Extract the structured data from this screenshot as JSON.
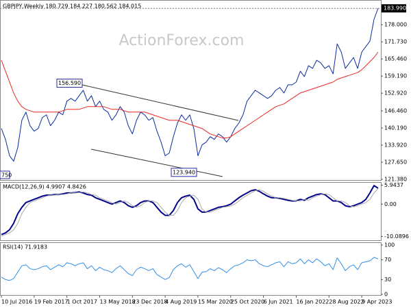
{
  "chart_data": [
    {
      "type": "line",
      "title": "GBPJPY,Weekly  180.729 184.227 180.562 184.015",
      "watermark": "ActionForex.com",
      "ylim": [
        120.88,
        186.55
      ],
      "yticks": [
        {
          "value": 178,
          "label": "178.000"
        },
        {
          "value": 171.73,
          "label": "171.730"
        },
        {
          "value": 165.46,
          "label": "165.460"
        },
        {
          "value": 159.19,
          "label": "159.190"
        },
        {
          "value": 152.92,
          "label": "152.920"
        },
        {
          "value": 146.46,
          "label": "146.460"
        },
        {
          "value": 140.19,
          "label": "140.190"
        },
        {
          "value": 133.92,
          "label": "133.920"
        },
        {
          "value": 127.65,
          "label": "127.650"
        },
        {
          "value": 121.38,
          "label": "121.380"
        }
      ],
      "current_price": {
        "value": 183.99,
        "label": "183.990"
      },
      "annotations": [
        {
          "value": 156.59,
          "label": "156.590"
        },
        {
          "value": 123.94,
          "label": "123.940"
        }
      ],
      "clipped_label": "750",
      "series": [
        {
          "color": "#0a2a9e",
          "line_width": 1,
          "values": [
            140,
            136,
            130,
            128,
            133,
            143,
            146,
            141,
            139,
            140,
            144,
            145,
            141,
            143,
            146,
            145,
            150,
            151,
            150,
            152,
            154,
            150,
            152,
            148,
            150,
            147,
            146,
            143,
            145,
            148,
            146,
            141,
            138,
            143,
            146,
            145,
            143,
            144,
            139,
            135,
            130,
            131,
            137,
            142,
            145,
            143,
            145,
            140,
            130,
            134,
            135,
            137,
            136,
            138,
            137,
            135,
            137,
            140,
            142,
            145,
            150,
            152,
            154,
            153,
            152,
            151,
            152,
            154,
            155,
            153,
            156,
            156,
            157,
            161,
            159,
            163,
            162,
            165,
            164,
            162,
            163,
            160,
            171,
            168,
            162,
            164,
            166,
            162,
            168,
            170,
            172,
            180,
            184.015
          ]
        },
        {
          "color": "#e8281f",
          "line_width": 1,
          "values": [
            165,
            161,
            157,
            153,
            150,
            148,
            147,
            146.5,
            146,
            146,
            146,
            146,
            146,
            146,
            146,
            146.5,
            147,
            147,
            147,
            147,
            147.5,
            148,
            148,
            148,
            148,
            148,
            147.5,
            147,
            147,
            147,
            146.5,
            146,
            146,
            146,
            146,
            146,
            145.5,
            145,
            144.5,
            144,
            143.5,
            143,
            143,
            143,
            142.5,
            142,
            141.5,
            141,
            140.5,
            140,
            139,
            138,
            137.5,
            137,
            136.5,
            136.5,
            137,
            138,
            139,
            140,
            141,
            142,
            143,
            144,
            145,
            146,
            147,
            148,
            148.5,
            149,
            150,
            151,
            152,
            153,
            153.5,
            154,
            154.5,
            155,
            155.5,
            156,
            156.5,
            157,
            158,
            158.5,
            159,
            159.5,
            160,
            160.5,
            161.5,
            163,
            164.5,
            166,
            168
          ]
        }
      ]
    },
    {
      "type": "line",
      "title": "MACD(12,26,9) 4.9907 4.8426",
      "ylim": [
        -11.5,
        6.9
      ],
      "yticks": [
        5.9437,
        {
          "value": 0,
          "label": "0.00"
        },
        -10.0896
      ],
      "series": [
        {
          "color": "#00008b",
          "line_width": 2,
          "values": [
            -9.5,
            -9,
            -8,
            -6,
            -3,
            -1,
            0.5,
            1,
            1.5,
            2,
            2.5,
            2.8,
            2.8,
            3,
            3,
            3.2,
            3.5,
            3.5,
            3.6,
            3.8,
            3.5,
            3,
            2.8,
            2,
            1.5,
            1,
            0.5,
            0,
            0.5,
            1,
            0.5,
            -0.5,
            -1,
            -0.5,
            0.5,
            1,
            1,
            0.5,
            -1,
            -2.5,
            -3.5,
            -3.5,
            -2,
            0.5,
            2,
            2.5,
            2.8,
            1.5,
            -1.5,
            -2.5,
            -2.5,
            -2,
            -1.5,
            -1,
            -0.8,
            -0.5,
            0,
            1,
            2,
            2.8,
            3.5,
            4.2,
            4.5,
            4,
            3.2,
            2.5,
            2,
            2,
            1.8,
            1.5,
            1.2,
            1,
            1,
            1.5,
            1.2,
            2,
            2.5,
            3,
            3.2,
            3,
            2,
            1,
            1,
            0.5,
            -0.5,
            -0.8,
            -0.5,
            0,
            0.5,
            1.5,
            3.5,
            5.8,
            4.9907
          ]
        },
        {
          "color": "#a8a8a8",
          "line_width": 1,
          "values": [
            -10,
            -9.5,
            -9,
            -8,
            -6,
            -3,
            -1,
            0.5,
            1,
            1.5,
            2,
            2.5,
            2.8,
            2.8,
            3,
            3,
            3.2,
            3.5,
            3.5,
            3.6,
            3.8,
            3.5,
            3,
            2.8,
            2,
            1.5,
            1,
            0.5,
            0,
            0.5,
            1,
            0.5,
            -0.5,
            -1,
            -0.5,
            0.5,
            1,
            1,
            0.5,
            -1,
            -2.5,
            -3.5,
            -3.5,
            -2,
            0.5,
            2,
            2.5,
            2.8,
            1.5,
            -1.5,
            -2.5,
            -2.5,
            -2,
            -1.5,
            -1,
            -0.8,
            -0.5,
            0,
            1,
            2,
            2.8,
            3.5,
            4.2,
            4.5,
            4,
            3.2,
            2.5,
            2,
            2,
            1.8,
            1.5,
            1.2,
            1,
            1,
            1.5,
            1.2,
            2,
            2.5,
            3,
            3.2,
            3,
            2,
            1,
            1,
            0.5,
            -0.5,
            -0.8,
            -0.5,
            0,
            0.5,
            1.5,
            3.5,
            4.8426
          ]
        }
      ]
    },
    {
      "type": "line",
      "title": "RSI(14) 71.9183",
      "ylim": [
        0,
        100
      ],
      "yticks": [
        100,
        70,
        30,
        0
      ],
      "categories": [
        "10 Jul 2016",
        null,
        null,
        null,
        null,
        null,
        null,
        null,
        "19 Feb 2017",
        null,
        null,
        null,
        null,
        null,
        null,
        null,
        "1 Oct 2017",
        null,
        null,
        null,
        null,
        null,
        null,
        null,
        "13 May 2018",
        null,
        null,
        null,
        null,
        null,
        null,
        null,
        "23 Dec 2018",
        null,
        null,
        null,
        null,
        null,
        null,
        null,
        "4 Aug 2019",
        null,
        null,
        null,
        null,
        null,
        null,
        null,
        "15 Mar 2020",
        null,
        null,
        null,
        null,
        null,
        null,
        null,
        "25 Oct 2020",
        null,
        null,
        null,
        null,
        null,
        null,
        null,
        "6 Jun 2021",
        null,
        null,
        null,
        null,
        null,
        null,
        null,
        "16 Jan 2022",
        null,
        null,
        null,
        null,
        null,
        null,
        null,
        "28 Aug 2022",
        null,
        null,
        null,
        null,
        null,
        null,
        null,
        "9 Apr 2023",
        null,
        null,
        null,
        null
      ],
      "series": [
        {
          "color": "#2f8fe8",
          "line_width": 1,
          "values": [
            35,
            30,
            28,
            32,
            45,
            58,
            60,
            52,
            50,
            52,
            56,
            58,
            50,
            55,
            60,
            56,
            64,
            62,
            58,
            62,
            64,
            52,
            58,
            48,
            55,
            50,
            48,
            44,
            52,
            58,
            50,
            42,
            38,
            50,
            55,
            52,
            48,
            52,
            40,
            35,
            30,
            34,
            50,
            58,
            62,
            55,
            60,
            46,
            32,
            45,
            46,
            52,
            48,
            54,
            50,
            44,
            52,
            58,
            60,
            64,
            70,
            68,
            70,
            62,
            58,
            56,
            60,
            64,
            66,
            56,
            66,
            62,
            64,
            72,
            62,
            70,
            64,
            72,
            66,
            58,
            62,
            50,
            74,
            62,
            48,
            56,
            60,
            50,
            64,
            66,
            68,
            75,
            71.9183
          ]
        }
      ]
    }
  ]
}
